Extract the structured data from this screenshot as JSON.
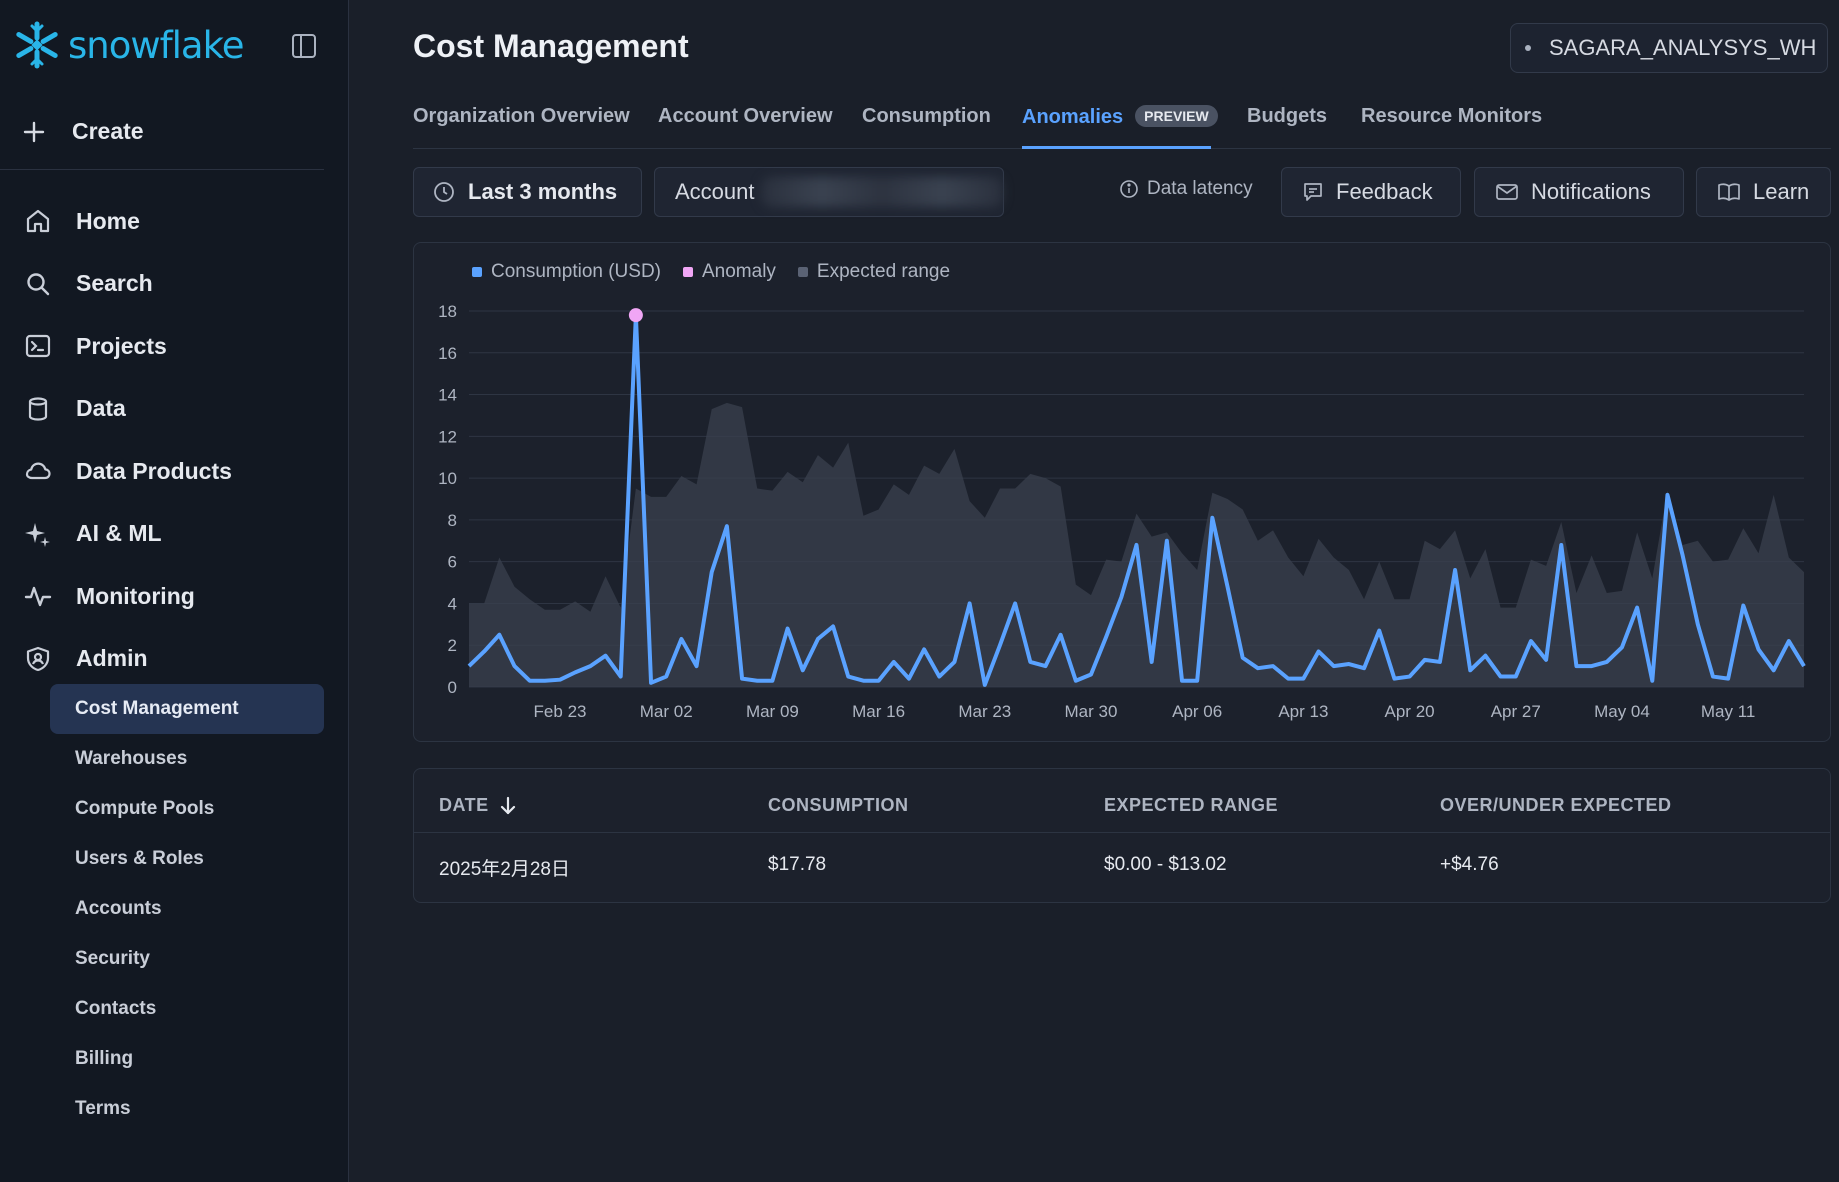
{
  "app": {
    "logo_text": "snowflake"
  },
  "sidebar": {
    "create_label": "Create",
    "nav_items": [
      {
        "label": "Home",
        "icon": "home-icon"
      },
      {
        "label": "Search",
        "icon": "search-icon"
      },
      {
        "label": "Projects",
        "icon": "terminal-icon"
      },
      {
        "label": "Data",
        "icon": "database-icon"
      },
      {
        "label": "Data Products",
        "icon": "cloud-icon"
      },
      {
        "label": "AI & ML",
        "icon": "sparkle-icon"
      },
      {
        "label": "Monitoring",
        "icon": "activity-icon"
      },
      {
        "label": "Admin",
        "icon": "shield-icon"
      }
    ],
    "admin_items": [
      "Cost Management",
      "Warehouses",
      "Compute Pools",
      "Users & Roles",
      "Accounts",
      "Security",
      "Contacts",
      "Billing",
      "Terms"
    ],
    "active_admin_item": "Cost Management"
  },
  "header": {
    "title": "Cost Management",
    "warehouse": "SAGARA_ANALYSYS_WH"
  },
  "tabs": [
    {
      "label": "Organization Overview"
    },
    {
      "label": "Account Overview"
    },
    {
      "label": "Consumption"
    },
    {
      "label": "Anomalies",
      "badge": "PREVIEW",
      "active": true
    },
    {
      "label": "Budgets"
    },
    {
      "label": "Resource Monitors"
    }
  ],
  "filters": {
    "time_range": "Last 3 months",
    "account_label": "Account",
    "data_latency": "Data latency",
    "feedback": "Feedback",
    "notifications": "Notifications",
    "learn": "Learn"
  },
  "colors": {
    "accent": "#5aa2ff",
    "anomaly": "#f0a6f5",
    "expected_range": "#3a404d",
    "grid": "#2e3543"
  },
  "chart_data": {
    "type": "area",
    "legend": [
      "Consumption (USD)",
      "Anomaly",
      "Expected range"
    ],
    "ylim": [
      0,
      18
    ],
    "yticks": [
      0,
      2,
      4,
      6,
      8,
      10,
      12,
      14,
      16,
      18
    ],
    "xlim": [
      0,
      88
    ],
    "xtick_labels": [
      {
        "x": 6,
        "label": "Feb 23"
      },
      {
        "x": 13,
        "label": "Mar 02"
      },
      {
        "x": 20,
        "label": "Mar 09"
      },
      {
        "x": 27,
        "label": "Mar 16"
      },
      {
        "x": 34,
        "label": "Mar 23"
      },
      {
        "x": 41,
        "label": "Mar 30"
      },
      {
        "x": 48,
        "label": "Apr 06"
      },
      {
        "x": 55,
        "label": "Apr 13"
      },
      {
        "x": 62,
        "label": "Apr 20"
      },
      {
        "x": 69,
        "label": "Apr 27"
      },
      {
        "x": 76,
        "label": "May 04"
      },
      {
        "x": 83,
        "label": "May 11"
      }
    ],
    "series": [
      {
        "name": "Consumption (USD)",
        "values": [
          1.0,
          1.7,
          2.5,
          1.0,
          0.3,
          0.3,
          0.35,
          0.7,
          1.0,
          1.5,
          0.5,
          17.8,
          0.2,
          0.5,
          2.3,
          1.0,
          5.5,
          7.7,
          0.4,
          0.3,
          0.3,
          2.8,
          0.8,
          2.3,
          2.9,
          0.5,
          0.3,
          0.3,
          1.2,
          0.4,
          1.8,
          0.5,
          1.2,
          4.0,
          0.1,
          2.0,
          4.0,
          1.2,
          1.0,
          2.5,
          0.3,
          0.6,
          2.4,
          4.3,
          6.8,
          1.2,
          7.0,
          0.3,
          0.3,
          8.1,
          4.8,
          1.4,
          0.9,
          1.0,
          0.4,
          0.4,
          1.7,
          1.0,
          1.1,
          0.9,
          2.7,
          0.4,
          0.5,
          1.3,
          1.2,
          5.6,
          0.8,
          1.5,
          0.5,
          0.5,
          2.2,
          1.3,
          6.8,
          1.0,
          1.0,
          1.2,
          1.9,
          3.8,
          0.3,
          9.2,
          6.3,
          3.0,
          0.5,
          0.4,
          3.9,
          1.8,
          0.8,
          2.2,
          1.0
        ]
      },
      {
        "name": "Expected range",
        "values": [
          4.0,
          4.0,
          6.2,
          4.8,
          4.2,
          3.7,
          3.7,
          4.1,
          3.6,
          5.3,
          3.8,
          9.5,
          9.1,
          9.1,
          10.1,
          9.7,
          13.3,
          13.6,
          13.4,
          9.5,
          9.4,
          10.3,
          9.8,
          11.1,
          10.5,
          11.7,
          8.2,
          8.5,
          9.7,
          9.2,
          10.6,
          10.2,
          11.4,
          8.9,
          8.1,
          9.5,
          9.5,
          10.2,
          10.0,
          9.6,
          4.9,
          4.4,
          6.1,
          6.0,
          8.3,
          7.2,
          7.4,
          6.4,
          5.6,
          9.3,
          9.0,
          8.5,
          7.0,
          7.5,
          6.2,
          5.3,
          7.1,
          6.2,
          5.6,
          4.2,
          6.0,
          4.2,
          4.2,
          7.0,
          6.6,
          7.5,
          5.2,
          6.6,
          3.8,
          3.8,
          6.1,
          5.8,
          7.9,
          4.5,
          6.3,
          4.5,
          4.6,
          7.4,
          5.2,
          9.4,
          6.8,
          7.0,
          6.0,
          6.1,
          7.6,
          6.4,
          9.2,
          6.2,
          5.5
        ]
      }
    ],
    "anomalies": [
      {
        "x": 11,
        "value": 17.8
      }
    ]
  },
  "table": {
    "columns": [
      "DATE",
      "CONSUMPTION",
      "EXPECTED RANGE",
      "OVER/UNDER EXPECTED"
    ],
    "rows": [
      [
        "2025年2月28日",
        "$17.78",
        "$0.00 - $13.02",
        "+$4.76"
      ]
    ]
  }
}
